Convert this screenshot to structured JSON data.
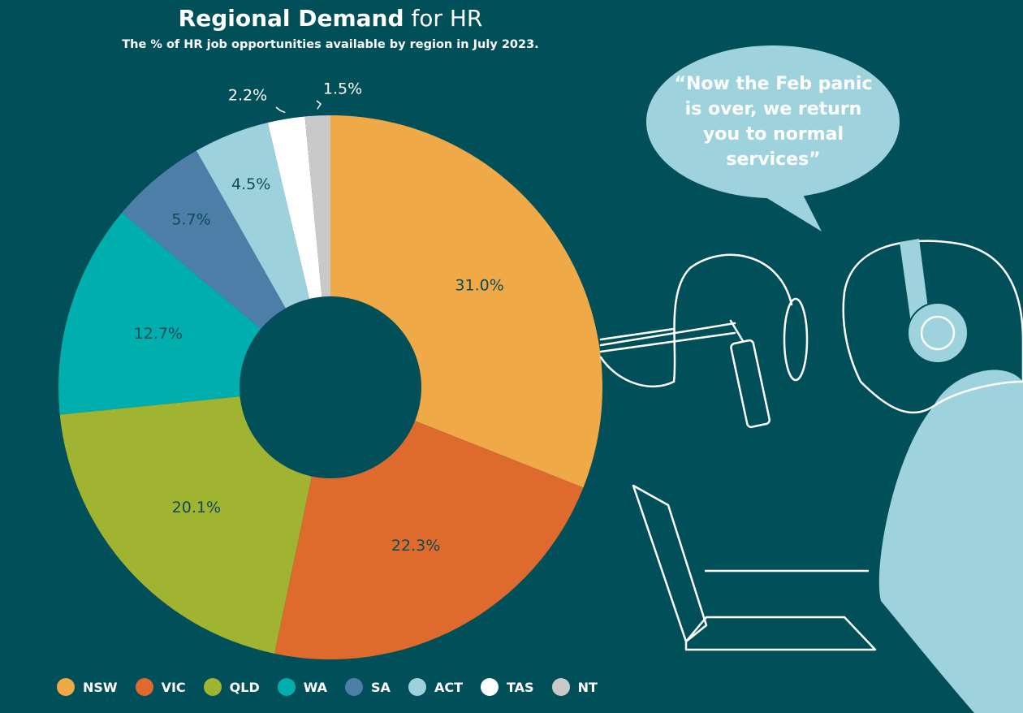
{
  "chart_data": {
    "type": "pie",
    "style": "donut",
    "title_bold": "Regional Demand",
    "title_rest": "for HR",
    "subtitle": "The % of HR job opportunities available by region in July 2023.",
    "categories": [
      "NSW",
      "VIC",
      "QLD",
      "WA",
      "SA",
      "ACT",
      "TAS",
      "NT"
    ],
    "values": [
      31.0,
      22.3,
      20.1,
      12.7,
      5.7,
      4.5,
      2.2,
      1.5
    ],
    "labels": [
      "31.0%",
      "22.3%",
      "20.1%",
      "12.7%",
      "5.7%",
      "4.5%",
      "2.2%",
      "1.5%"
    ],
    "colors": [
      "#f0a947",
      "#de6a2e",
      "#a0b432",
      "#00aeae",
      "#4d7ea8",
      "#9dd2dd",
      "#ffffff",
      "#c9c9c9"
    ],
    "legend_position": "bottom"
  },
  "illustration": {
    "quote": "“Now the Feb panic is over, we return you to normal services”",
    "bubble_color": "#9ed2dc"
  },
  "background": "#014f58"
}
